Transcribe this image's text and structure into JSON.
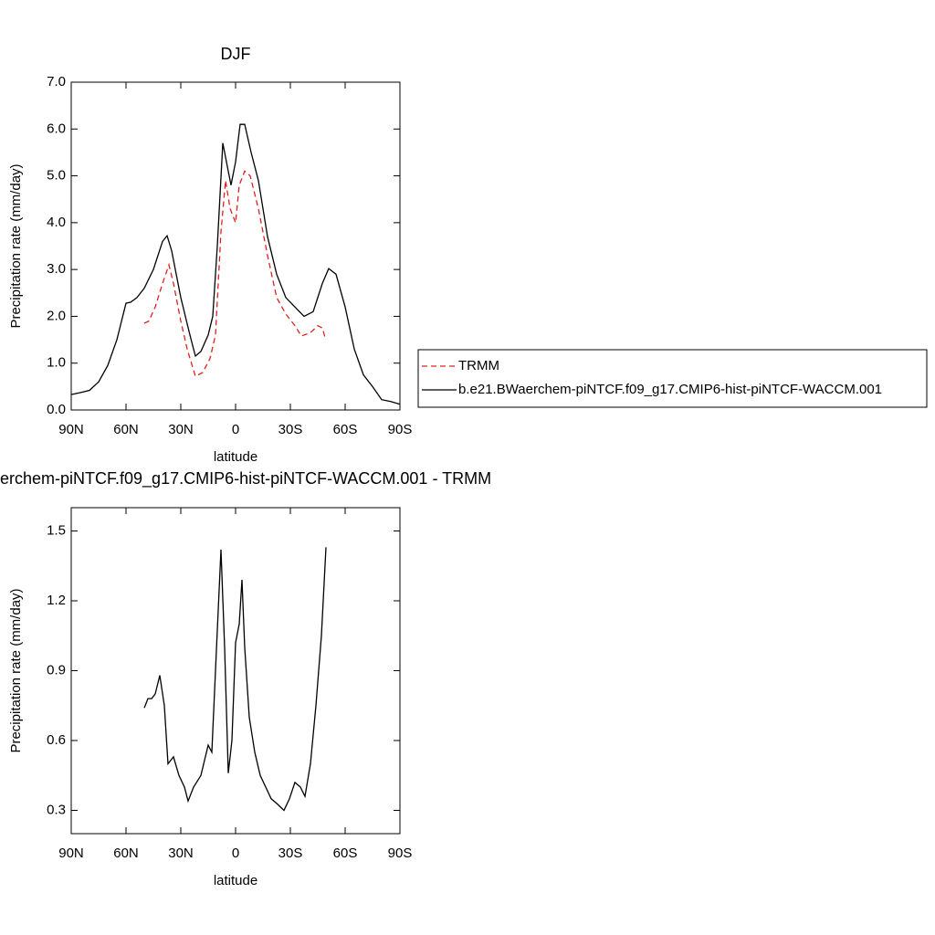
{
  "chart_data": [
    {
      "type": "line",
      "title": "DJF",
      "xlabel": "latitude",
      "ylabel": "Precipitation rate (mm/day)",
      "xlim": [
        90,
        -90
      ],
      "ylim": [
        0,
        7
      ],
      "xticks": [
        {
          "value": 90,
          "label": "90N"
        },
        {
          "value": 60,
          "label": "60N"
        },
        {
          "value": 30,
          "label": "30N"
        },
        0,
        {
          "value": -30,
          "label": "30S"
        },
        {
          "value": -60,
          "label": "60S"
        },
        {
          "value": -90,
          "label": "90S"
        }
      ],
      "yticks": [
        {
          "value": 0,
          "label": "0.0"
        },
        {
          "value": 1,
          "label": "1.0"
        },
        {
          "value": 2,
          "label": "2.0"
        },
        {
          "value": 3,
          "label": "3.0"
        },
        {
          "value": 4,
          "label": "4.0"
        },
        {
          "value": 5,
          "label": "5.0"
        },
        {
          "value": 6,
          "label": "6.0"
        },
        {
          "value": 7,
          "label": "7.0"
        }
      ],
      "series": [
        {
          "name": "TRMM",
          "color": "#e0201f",
          "dashed": true,
          "x": [
            50,
            47.5,
            44,
            40,
            36.5,
            34,
            30,
            26.5,
            22,
            18,
            14,
            11,
            8,
            5.5,
            3,
            0,
            -2,
            -5,
            -8,
            -12.5,
            -17.5,
            -22.5,
            -27.5,
            -32.5,
            -36,
            -41,
            -45,
            -47.5,
            -49
          ],
          "values": [
            1.85,
            1.9,
            2.2,
            2.7,
            3.1,
            2.7,
            1.9,
            1.3,
            0.72,
            0.8,
            1.1,
            1.6,
            3.8,
            4.9,
            4.3,
            4.0,
            4.8,
            5.1,
            5.0,
            4.3,
            3.3,
            2.4,
            2.05,
            1.8,
            1.58,
            1.65,
            1.8,
            1.75,
            1.55
          ]
        },
        {
          "name": "b.e21.BWaerchem-piNTCF.f09_g17.CMIP6-hist-piNTCF-WACCM.001",
          "color": "#000000",
          "dashed": false,
          "x": [
            90,
            85,
            80,
            75,
            70,
            65,
            60,
            57.5,
            54,
            50,
            45,
            40,
            37.5,
            35,
            30,
            25,
            22,
            19,
            15,
            12.5,
            10,
            7,
            5,
            2.5,
            0,
            -2.5,
            -5,
            -8.5,
            -12.5,
            -17.5,
            -22.5,
            -27.5,
            -32.5,
            -37.5,
            -42.5,
            -47.5,
            -51,
            -55,
            -60,
            -65,
            -70,
            -75,
            -80,
            -85,
            -90
          ],
          "values": [
            0.33,
            0.37,
            0.42,
            0.6,
            0.95,
            1.5,
            2.28,
            2.3,
            2.4,
            2.6,
            3.0,
            3.6,
            3.72,
            3.4,
            2.4,
            1.6,
            1.15,
            1.25,
            1.6,
            2.0,
            3.5,
            5.7,
            5.3,
            4.8,
            5.3,
            6.1,
            6.1,
            5.5,
            4.9,
            3.7,
            2.9,
            2.4,
            2.2,
            2.0,
            2.1,
            2.7,
            3.02,
            2.9,
            2.2,
            1.3,
            0.75,
            0.5,
            0.22,
            0.18,
            0.12
          ]
        }
      ]
    },
    {
      "type": "line",
      "title": "erchem-piNTCF.f09_g17.CMIP6-hist-piNTCF-WACCM.001 - TRMM",
      "xlabel": "latitude",
      "ylabel": "Precipitation rate (mm/day)",
      "xlim": [
        90,
        -90
      ],
      "ylim": [
        0.2,
        1.6
      ],
      "xticks": [
        {
          "value": 90,
          "label": "90N"
        },
        {
          "value": 60,
          "label": "60N"
        },
        {
          "value": 30,
          "label": "30N"
        },
        0,
        {
          "value": -30,
          "label": "30S"
        },
        {
          "value": -60,
          "label": "60S"
        },
        {
          "value": -90,
          "label": "90S"
        }
      ],
      "yticks": [
        0.3,
        0.6,
        0.9,
        1.2,
        1.5
      ],
      "series": [
        {
          "color": "#000000",
          "dashed": false,
          "x": [
            50,
            48,
            46,
            44,
            41.5,
            39,
            37,
            34,
            31,
            28,
            26,
            23,
            19,
            15,
            13,
            11,
            8,
            6,
            4,
            2,
            0,
            -2,
            -3.5,
            -5,
            -7.5,
            -10.5,
            -13.5,
            -16.5,
            -19.5,
            -22.5,
            -26.5,
            -29.5,
            -32.5,
            -35.5,
            -38,
            -41,
            -44,
            -47,
            -49.5
          ],
          "values": [
            0.74,
            0.78,
            0.78,
            0.8,
            0.88,
            0.75,
            0.5,
            0.53,
            0.45,
            0.4,
            0.34,
            0.4,
            0.45,
            0.58,
            0.55,
            0.9,
            1.42,
            1.0,
            0.46,
            0.6,
            1.02,
            1.1,
            1.29,
            1.0,
            0.7,
            0.55,
            0.45,
            0.4,
            0.35,
            0.33,
            0.3,
            0.35,
            0.42,
            0.4,
            0.36,
            0.5,
            0.75,
            1.05,
            1.43
          ]
        }
      ]
    }
  ]
}
